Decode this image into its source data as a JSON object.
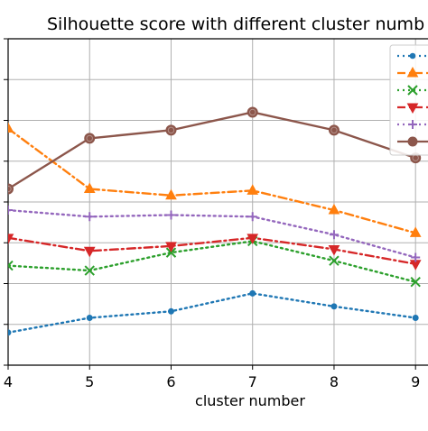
{
  "chart_data": {
    "type": "line",
    "title": "Silhouette score with different cluster numb",
    "xlabel": "cluster number",
    "ylabel": "",
    "x": [
      4,
      5,
      6,
      7,
      8,
      9
    ],
    "xlim": [
      4,
      9.02
    ],
    "ylim": [
      0,
      1
    ],
    "grid": true,
    "legend_position": "top-right",
    "series": [
      {
        "color": "#1f77b4",
        "linestyle": "dotted",
        "marker": "circle",
        "values": [
          0.1,
          0.145,
          0.165,
          0.22,
          0.18,
          0.145
        ]
      },
      {
        "color": "#ff7f0e",
        "linestyle": "dashdot",
        "marker": "triangle-up",
        "values": [
          0.725,
          0.54,
          0.52,
          0.535,
          0.475,
          0.405
        ]
      },
      {
        "color": "#2ca02c",
        "linestyle": "dotted",
        "marker": "x",
        "values": [
          0.305,
          0.29,
          0.345,
          0.38,
          0.32,
          0.255
        ]
      },
      {
        "color": "#d62728",
        "linestyle": "dashdot",
        "marker": "triangle-down",
        "values": [
          0.39,
          0.35,
          0.365,
          0.39,
          0.355,
          0.31
        ]
      },
      {
        "color": "#9467bd",
        "linestyle": "dotted",
        "marker": "plus",
        "values": [
          0.475,
          0.455,
          0.46,
          0.455,
          0.4,
          0.33
        ]
      },
      {
        "color": "#8c564b",
        "linestyle": "solid",
        "marker": "circle",
        "values": [
          0.54,
          0.695,
          0.72,
          0.775,
          0.72,
          0.635
        ]
      }
    ]
  }
}
